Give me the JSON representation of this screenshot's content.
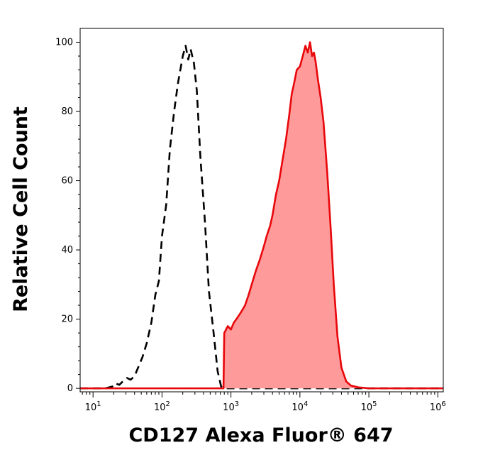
{
  "chart_data": {
    "type": "area",
    "xlabel": "CD127 Alexa Fluor® 647",
    "ylabel": "Relative Cell Count",
    "x_scale": "log",
    "xlim": [
      6.5,
      1200000
    ],
    "ylim": [
      -1,
      104
    ],
    "x_ticks": [
      {
        "value": 10,
        "base": "10",
        "exp": "1"
      },
      {
        "value": 100,
        "base": "10",
        "exp": "2"
      },
      {
        "value": 1000,
        "base": "10",
        "exp": "3"
      },
      {
        "value": 10000,
        "base": "10",
        "exp": "4"
      },
      {
        "value": 100000,
        "base": "10",
        "exp": "5"
      },
      {
        "value": 1000000,
        "base": "10",
        "exp": "6"
      }
    ],
    "y_ticks": [
      {
        "value": 0,
        "label": "0"
      },
      {
        "value": 20,
        "label": "20"
      },
      {
        "value": 40,
        "label": "40"
      },
      {
        "value": 60,
        "label": "60"
      },
      {
        "value": 80,
        "label": "80"
      },
      {
        "value": 100,
        "label": "100"
      }
    ],
    "colors": {
      "control_line": "#000000",
      "stained_line": "#e8070b",
      "stained_fill": "#ff9a9a"
    },
    "series": [
      {
        "style": "dashed",
        "x": [
          6.5,
          10,
          15,
          19,
          21,
          24,
          27,
          31,
          35,
          40,
          45,
          52,
          60,
          70,
          80,
          90,
          100,
          115,
          130,
          150,
          170,
          200,
          220,
          240,
          260,
          290,
          320,
          360,
          420,
          480,
          560,
          640,
          720,
          800,
          1000,
          10000,
          1200000
        ],
        "y": [
          0,
          0,
          0,
          0.5,
          1.5,
          1,
          2,
          3,
          2.5,
          3.5,
          6,
          9,
          13,
          19,
          27,
          31,
          44,
          53,
          69,
          80,
          88,
          96,
          99,
          95,
          98,
          94,
          86,
          67,
          48,
          28,
          16,
          5,
          0.5,
          0,
          0,
          0,
          0
        ]
      },
      {
        "style": "filled",
        "x": [
          6.5,
          700,
          780,
          800,
          900,
          1000,
          1100,
          1200,
          1400,
          1600,
          1800,
          2000,
          2300,
          2600,
          3000,
          3300,
          3700,
          4000,
          4500,
          5000,
          5600,
          6300,
          7000,
          7600,
          8200,
          9000,
          10000,
          11000,
          12000,
          13000,
          14000,
          15000,
          16000,
          17000,
          18000,
          20000,
          22000,
          25000,
          28000,
          31000,
          35000,
          40000,
          47000,
          55000,
          70000,
          100000,
          1200000
        ],
        "y": [
          0,
          0,
          0,
          16,
          18,
          17,
          19,
          20,
          22,
          24,
          27,
          30,
          34,
          37,
          41,
          44,
          47,
          50,
          56,
          60,
          66,
          72,
          79,
          85,
          88,
          92,
          93,
          96,
          99,
          97,
          100,
          96,
          97,
          94,
          90,
          84,
          77,
          62,
          46,
          30,
          15,
          6,
          2,
          0.8,
          0.3,
          0,
          0
        ]
      }
    ]
  }
}
